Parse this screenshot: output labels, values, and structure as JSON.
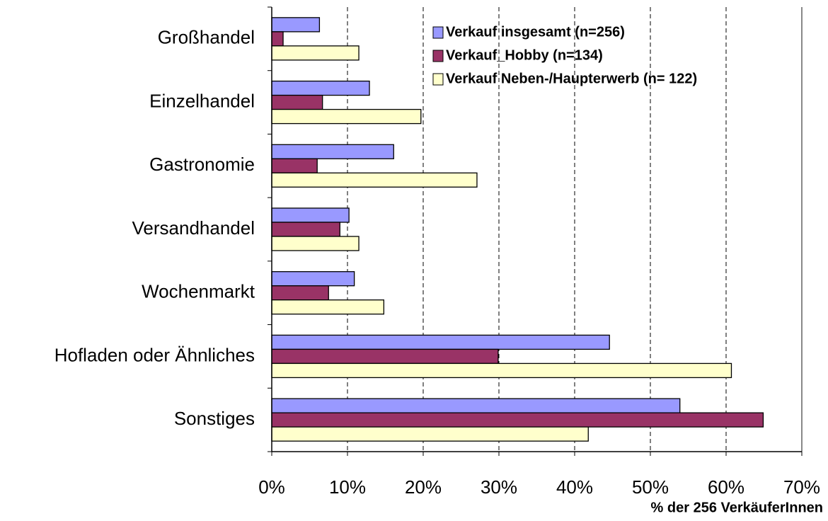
{
  "chart_data": {
    "type": "bar",
    "orientation": "horizontal",
    "categories": [
      "Großhandel",
      "Einzelhandel",
      "Gastronomie",
      "Versandhandel",
      "Wochenmarkt",
      "Hofladen oder Ähnliches",
      "Sonstiges"
    ],
    "series": [
      {
        "name": "Verkauf insgesamt (n=256)",
        "color": "#9999ff",
        "values": [
          6.3,
          12.9,
          16.1,
          10.2,
          10.9,
          44.6,
          53.9
        ]
      },
      {
        "name": "Verkauf_Hobby (n=134)",
        "color": "#993366",
        "values": [
          1.5,
          6.7,
          6.0,
          9.0,
          7.5,
          29.9,
          64.9
        ]
      },
      {
        "name": "Verkauf Neben-/Haupterwerb (n= 122)",
        "color": "#ffffcc",
        "values": [
          11.5,
          19.7,
          27.1,
          11.5,
          14.8,
          60.7,
          41.8
        ]
      }
    ],
    "x_label": "% der 256 VerkäuferInnen",
    "xlim": [
      0,
      70
    ],
    "xticks": [
      {
        "value": 0,
        "label": "0%"
      },
      {
        "value": 10,
        "label": "10%"
      },
      {
        "value": 20,
        "label": "20%"
      },
      {
        "value": 30,
        "label": "30%"
      },
      {
        "value": 40,
        "label": "40%"
      },
      {
        "value": 50,
        "label": "50%"
      },
      {
        "value": 60,
        "label": "60%"
      },
      {
        "value": 70,
        "label": "70%"
      }
    ],
    "grid": true,
    "legend": "top-right"
  }
}
